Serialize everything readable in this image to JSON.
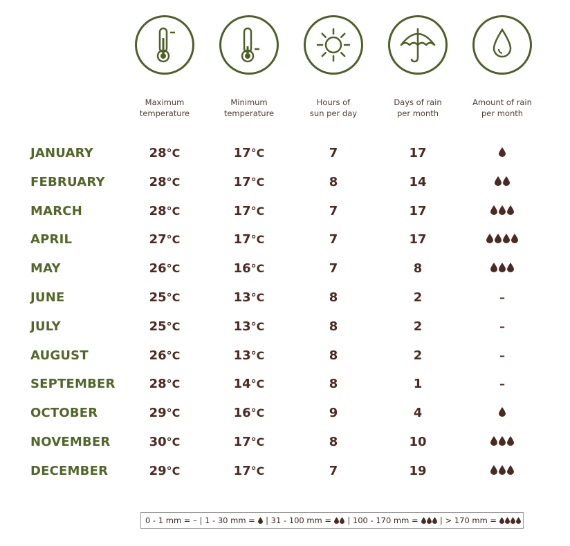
{
  "columns": [
    {
      "icon": "thermometer-high-icon",
      "label_line1": "Maximum",
      "label_line2": "temperature"
    },
    {
      "icon": "thermometer-low-icon",
      "label_line1": "Minimum",
      "label_line2": "temperature"
    },
    {
      "icon": "sun-icon",
      "label_line1": "Hours of",
      "label_line2": "sun per day"
    },
    {
      "icon": "umbrella-icon",
      "label_line1": "Days of rain",
      "label_line2": "per month"
    },
    {
      "icon": "raindrop-icon",
      "label_line1": "Amount of rain",
      "label_line2": "per month"
    }
  ],
  "rows": [
    {
      "month": "JANUARY",
      "max": "28",
      "min": "17",
      "sun": "7",
      "rain_days": "17",
      "rain_drops": 1
    },
    {
      "month": "FEBRUARY",
      "max": "28",
      "min": "17",
      "sun": "8",
      "rain_days": "14",
      "rain_drops": 2
    },
    {
      "month": "MARCH",
      "max": "28",
      "min": "17",
      "sun": "7",
      "rain_days": "17",
      "rain_drops": 3
    },
    {
      "month": "APRIL",
      "max": "27",
      "min": "17",
      "sun": "7",
      "rain_days": "17",
      "rain_drops": 4
    },
    {
      "month": "MAY",
      "max": "26",
      "min": "16",
      "sun": "7",
      "rain_days": "8",
      "rain_drops": 3
    },
    {
      "month": "JUNE",
      "max": "25",
      "min": "13",
      "sun": "8",
      "rain_days": "2",
      "rain_drops": 0
    },
    {
      "month": "JULY",
      "max": "25",
      "min": "13",
      "sun": "8",
      "rain_days": "2",
      "rain_drops": 0
    },
    {
      "month": "AUGUST",
      "max": "26",
      "min": "13",
      "sun": "8",
      "rain_days": "2",
      "rain_drops": 0
    },
    {
      "month": "SEPTEMBER",
      "max": "28",
      "min": "14",
      "sun": "8",
      "rain_days": "1",
      "rain_drops": 0
    },
    {
      "month": "OCTOBER",
      "max": "29",
      "min": "16",
      "sun": "9",
      "rain_days": "4",
      "rain_drops": 1
    },
    {
      "month": "NOVEMBER",
      "max": "30",
      "min": "17",
      "sun": "8",
      "rain_days": "10",
      "rain_drops": 3
    },
    {
      "month": "DECEMBER",
      "max": "29",
      "min": "17",
      "sun": "7",
      "rain_days": "19",
      "rain_drops": 3
    }
  ],
  "degree_unit": "°C",
  "none_mark": "–",
  "legend": [
    {
      "range": "0 - 1 mm =",
      "drops": 0
    },
    {
      "range": "1 - 30 mm =",
      "drops": 1
    },
    {
      "range": "31 - 100 mm =",
      "drops": 2
    },
    {
      "range": "100 - 170 mm =",
      "drops": 3
    },
    {
      "range": "> 170 mm =",
      "drops": 4
    }
  ],
  "legend_separator": "|",
  "colors": {
    "green": "#53662a",
    "brown": "#4a2a22",
    "icon_green": "#4e5f28"
  }
}
